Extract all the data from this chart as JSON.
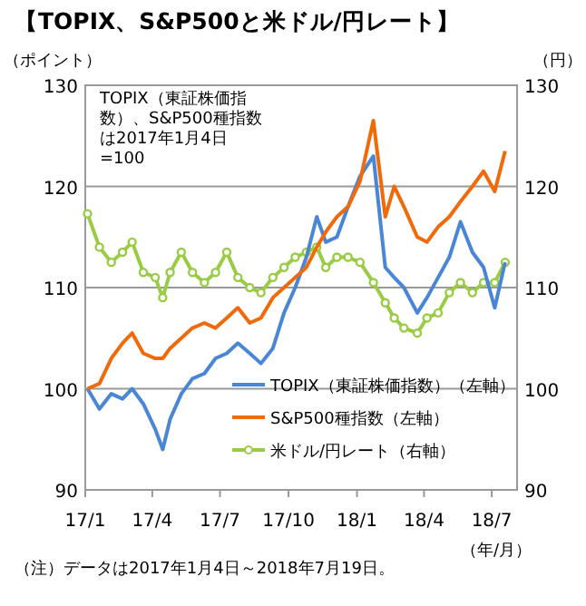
{
  "chart_data": {
    "type": "line",
    "title": "【TOPIX、S&P500と米ドル/円レート】",
    "ylabel": "（ポイント）",
    "y2label": "（円）",
    "xlabel": "（年/月）",
    "annotations": [
      "TOPIX（東証株価指数）、S&P500種指数は2017年1月4日=100",
      "（注）データは2017年1月4日～2018年7月19日。"
    ],
    "x": [
      "2017-01-04",
      "2017-01-20",
      "2017-02-05",
      "2017-02-20",
      "2017-03-05",
      "2017-03-20",
      "2017-04-05",
      "2017-04-15",
      "2017-04-25",
      "2017-05-10",
      "2017-05-25",
      "2017-06-10",
      "2017-06-25",
      "2017-07-10",
      "2017-07-25",
      "2017-08-10",
      "2017-08-25",
      "2017-09-10",
      "2017-09-25",
      "2017-10-10",
      "2017-10-25",
      "2017-11-08",
      "2017-11-20",
      "2017-12-05",
      "2017-12-20",
      "2018-01-05",
      "2018-01-23",
      "2018-02-08",
      "2018-02-20",
      "2018-03-05",
      "2018-03-23",
      "2018-04-05",
      "2018-04-20",
      "2018-05-05",
      "2018-05-20",
      "2018-06-05",
      "2018-06-20",
      "2018-07-05",
      "2018-07-19"
    ],
    "series": [
      {
        "name": "TOPIX（東証株価指数）（左軸）",
        "color": "#4a86d6",
        "values": [
          100,
          98,
          99.5,
          99,
          100,
          98.5,
          96,
          94,
          97,
          99.5,
          101,
          101.5,
          103,
          103.5,
          104.5,
          103.5,
          102.5,
          104,
          107.5,
          110,
          113,
          117,
          114.5,
          115,
          118,
          121,
          123,
          112,
          111,
          110,
          107.5,
          109,
          111,
          113,
          116.5,
          113.5,
          112,
          108,
          112.5
        ]
      },
      {
        "name": "S&P500種指数（左軸）",
        "color": "#f06a0a",
        "values": [
          100,
          100.5,
          103,
          104.5,
          105.5,
          103.5,
          103,
          103,
          104,
          105,
          106,
          106.5,
          106,
          107,
          108,
          106.5,
          107,
          109,
          110,
          111,
          112,
          114,
          115.5,
          117,
          118,
          120.5,
          126.5,
          117,
          120,
          118,
          115,
          114.5,
          116,
          117,
          118.5,
          120,
          121.5,
          119.5,
          123.5
        ]
      },
      {
        "name": "米ドル/円レート（右軸）",
        "color": "#99cc44",
        "axis": "y2",
        "marker": "circle",
        "values": [
          117.3,
          114,
          112.5,
          113.5,
          114.5,
          111.5,
          111,
          109,
          111.5,
          113.5,
          111.5,
          110.5,
          111.5,
          113.5,
          111,
          110,
          109.5,
          111,
          112,
          113,
          113.5,
          114,
          112,
          113,
          113,
          112.5,
          110.5,
          108.5,
          107,
          106,
          105.5,
          107,
          107.5,
          109.5,
          110.5,
          109.5,
          110.5,
          110.5,
          112.5
        ]
      }
    ],
    "xlim": [
      "2017-01-01",
      "2018-08-04"
    ],
    "xticks": [
      {
        "value": "2017-01-01",
        "label": "17/1"
      },
      {
        "value": "2017-04-01",
        "label": "17/4"
      },
      {
        "value": "2017-07-01",
        "label": "17/7"
      },
      {
        "value": "2017-10-01",
        "label": "17/10"
      },
      {
        "value": "2018-01-01",
        "label": "18/1"
      },
      {
        "value": "2018-04-01",
        "label": "18/4"
      },
      {
        "value": "2018-07-01",
        "label": "18/7"
      }
    ],
    "ylim": [
      90,
      130
    ],
    "yticks": [
      90,
      100,
      110,
      120,
      130
    ],
    "y2lim": [
      90,
      130
    ],
    "y2ticks": [
      90,
      100,
      110,
      120,
      130
    ],
    "grid": "y",
    "legend": "bottom right"
  }
}
